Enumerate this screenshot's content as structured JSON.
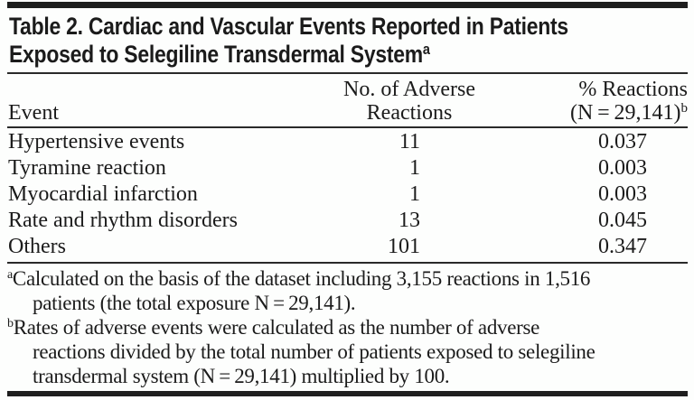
{
  "title": {
    "lines": [
      "Table 2. Cardiac and Vascular Events Reported in Patients",
      "Exposed to Selegiline Transdermal System"
    ],
    "superscript": "a"
  },
  "columns": {
    "event_label": "Event",
    "adverse": {
      "line1": "No. of Adverse",
      "line2": "Reactions"
    },
    "pct": {
      "line1": "% Reactions",
      "line2": "(N = 29,141)",
      "superscript": "b"
    }
  },
  "rows": [
    {
      "event": "Hypertensive events",
      "count": "11",
      "pct": "0.037"
    },
    {
      "event": "Tyramine reaction",
      "count": "1",
      "pct": "0.003"
    },
    {
      "event": "Myocardial infarction",
      "count": "1",
      "pct": "0.003"
    },
    {
      "event": "Rate and rhythm disorders",
      "count": "13",
      "pct": "0.045"
    },
    {
      "event": "Others",
      "count": "101",
      "pct": "0.347"
    }
  ],
  "footnotes": [
    {
      "marker": "a",
      "lines": [
        "Calculated on the basis of the dataset including 3,155 reactions in 1,516",
        "patients (the total exposure N = 29,141)."
      ]
    },
    {
      "marker": "b",
      "lines": [
        "Rates of adverse events were calculated as the number of adverse",
        "reactions divided by the total number of patients exposed to selegiline",
        "transdermal system (N = 29,141) multiplied by 100."
      ]
    }
  ],
  "colors": {
    "text": "#1b1b1b",
    "rule": "#1e1e1e",
    "background": "#fdfefd"
  }
}
